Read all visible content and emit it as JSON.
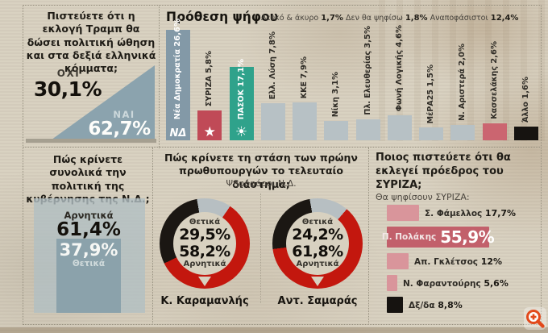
{
  "colors": {
    "paper": "#d8d1c0",
    "nd_blue": "#8399a7",
    "triangle_blue": "#8ba3ae",
    "syriza_red": "#c04a57",
    "pasok_green": "#2fa28b",
    "neutral_bar": "#b7c1c5",
    "kasselakis_pink": "#cb6570",
    "black": "#161310",
    "donut_red": "#c3170e",
    "donut_black": "#1b1713",
    "donut_gray": "#b7bfc2",
    "pink_bar": "#d9959b",
    "polakis_bar": "#c2606b",
    "zoom_orange": "#e2491b"
  },
  "chart_data": [
    {
      "id": "trump-boost",
      "type": "pie",
      "title": "Πιστεύετε ότι η εκλογή Τραμπ θα δώσει πολιτική ώθηση και στα δεξιά ελληνικά κόμματα;",
      "categories": [
        "ΟΧΙ",
        "ΝΑΙ"
      ],
      "values": [
        30.1,
        62.7
      ],
      "display": [
        "30,1%",
        "62,7%"
      ]
    },
    {
      "id": "voting-intention",
      "type": "bar",
      "title": "Πρόθεση ψήφου",
      "note": [
        {
          "label": "Λευκό & άκυρο",
          "value": "1,7%"
        },
        {
          "label": "Δεν θα ψηφίσω",
          "value": "1,8%"
        },
        {
          "label": "Αναποφάσιστοι",
          "value": "12,4%"
        }
      ],
      "categories": [
        "Νέα Δημοκρατία",
        "ΣΥΡΙΖΑ",
        "ΠΑΣΟΚ",
        "Ελλ. Λύση",
        "ΚΚΕ",
        "Νίκη",
        "Πλ. Ελευθερίας",
        "Φωνή Λογικής",
        "ΜέΡΑ25",
        "Ν. Αριστερά",
        "Κασσελάκης",
        "Άλλο"
      ],
      "values": [
        26.6,
        5.8,
        17.1,
        7.8,
        7.9,
        3.1,
        3.5,
        4.6,
        1.5,
        2.0,
        2.6,
        1.6
      ],
      "display": [
        "26,6%",
        "5,8%",
        "17,1%",
        "7,8%",
        "7,9%",
        "3,1%",
        "3,5%",
        "4,6%",
        "1,5%",
        "2,0%",
        "2,6%",
        "1,6%"
      ],
      "bar_colors": [
        "#8399a7",
        "#c04a57",
        "#2fa28b",
        "#b7c1c5",
        "#b7c1c5",
        "#b7c1c5",
        "#b7c1c5",
        "#b7c1c5",
        "#b7c1c5",
        "#b7c1c5",
        "#cb6570",
        "#161310"
      ],
      "logos": [
        "ΝΔ",
        "★",
        "☀",
        "",
        "",
        "",
        "",
        "",
        "",
        "",
        "",
        ""
      ],
      "ylim": [
        0,
        30
      ]
    },
    {
      "id": "government-policy",
      "type": "pie",
      "title": "Πώς κρίνετε συνολικά την πολιτική της κυβέρνησης της Ν.Δ.;",
      "categories": [
        "Αρνητικά",
        "Θετικά"
      ],
      "values": [
        61.4,
        37.9
      ],
      "display": [
        "61,4%",
        "37,9%"
      ]
    },
    {
      "id": "former-pms-stance",
      "type": "pie",
      "title": "Πώς κρίνετε τη στάση των πρώην πρωθυπουργών το τελευταίο διάστημα;",
      "subtitle": "Ψηφοφόροι Ν.Δ.",
      "charts": [
        {
          "name": "Κ. Καραμανλής",
          "categories": [
            "Θετικά",
            "Αρνητικά"
          ],
          "values": [
            29.5,
            58.2
          ],
          "display": [
            "29,5%",
            "58,2%"
          ]
        },
        {
          "name": "Αντ. Σαμαράς",
          "categories": [
            "Θετικά",
            "Αρνητικά"
          ],
          "values": [
            24.2,
            61.8
          ],
          "display": [
            "24,2%",
            "61,8%"
          ]
        }
      ],
      "segment_colors": {
        "positive": "#1b1713",
        "negative": "#c3170e",
        "rest": "#b7bfc2"
      }
    },
    {
      "id": "syriza-president",
      "type": "bar",
      "title": "Ποιος πιστεύετε ότι θα εκλεγεί πρόεδρος του ΣΥΡΙΖΑ;",
      "subtitle": "Θα ψηφίσουν ΣΥΡΙΖΑ:",
      "categories": [
        "Σ. Φάμελλος",
        "Π. Πολάκης",
        "Απ. Γκλέτσος",
        "Ν. Φαραντούρης",
        "Δξ/δα"
      ],
      "values": [
        17.7,
        55.9,
        12,
        5.6,
        8.8
      ],
      "display": [
        "17,7%",
        "55,9%",
        "12%",
        "5,6%",
        "8,8%"
      ],
      "bar_colors": [
        "#d9959b",
        "#c2606b",
        "#d9959b",
        "#d9959b",
        "#161310"
      ]
    }
  ]
}
